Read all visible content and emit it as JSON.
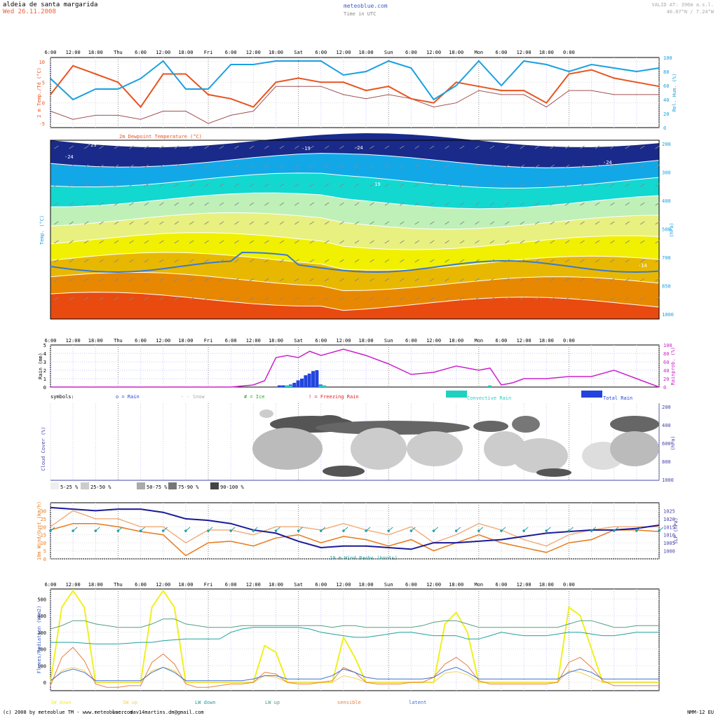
{
  "header": {
    "location": "aldeia de santa margarida",
    "date": "Wed 26.11.2008",
    "brand": "meteoblue.com",
    "time_note": "Time in UTC",
    "valid_at": "VALID AT: 396m a.s.l.",
    "coords": "40.07°N / 7.24°W"
  },
  "footer": {
    "copyright": "(c) 2008 by meteoblue TM - www.meteoblue.com",
    "user": "user: dav14martins.dm@gmail.com",
    "model": "NMM-12 EU"
  },
  "time_axis": {
    "labels": [
      "6:00",
      "12:00",
      "18:00",
      "Thu",
      "6:00",
      "12:00",
      "18:00",
      "Fri",
      "6:00",
      "12:00",
      "18:00",
      "Sat",
      "6:00",
      "12:00",
      "18:00",
      "Sun",
      "6:00",
      "12:00",
      "18:00",
      "Mon",
      "6:00",
      "12:00",
      "18:00",
      "0:00"
    ],
    "labels_panel3": [
      "6:00",
      "12:00",
      "18:00",
      "Thu",
      "6:00",
      "12:00",
      "18:00",
      "Fri",
      "6:00",
      "12:00",
      "18:00",
      "Sat",
      "6:00",
      "12:00",
      "18:00",
      "Sun",
      "6:00",
      "12:00",
      "18:00",
      "Mon",
      "6:00",
      "12:00",
      "18:00",
      "0:00"
    ]
  },
  "colors": {
    "temperature": "#e8531f",
    "humidity": "#1aa0e0",
    "dewpoint": "#a05050",
    "rain": "#2244dd",
    "conv_rain": "#20d0c0",
    "rain_prob": "#cc22cc",
    "pressure": "#1a1a9a",
    "wind": "#e87a1a",
    "gust": "#f0b080",
    "sw_down": "#f0f020",
    "lw_down": "#20a0a0"
  },
  "chart_data": [
    {
      "type": "line",
      "title": "2m Dewpoint Temperature (°C)",
      "ylabel": "2 m Temp./Td (°C)",
      "y2label": "Rel. Hum. (%)",
      "ylim": [
        -6,
        11
      ],
      "y2lim": [
        0,
        100
      ],
      "yticks": [
        10,
        5,
        0,
        -5
      ],
      "y2ticks": [
        100,
        80,
        60,
        40,
        20,
        0
      ],
      "x_hours": [
        0,
        6,
        12,
        18,
        24,
        30,
        36,
        42,
        48,
        54,
        60,
        66,
        72,
        78,
        84,
        90,
        96,
        102,
        108,
        114,
        120,
        126,
        132,
        138,
        144,
        150,
        156,
        162
      ],
      "series": [
        {
          "name": "2m Temperature",
          "values": [
            2,
            9,
            7,
            5,
            -1,
            7,
            7,
            2,
            1,
            -1,
            5,
            6,
            5,
            5,
            3,
            4,
            1,
            0,
            5,
            4,
            3,
            3,
            0,
            7,
            8,
            6,
            5,
            4
          ]
        },
        {
          "name": "Rel. Hum.",
          "values": [
            70,
            40,
            55,
            55,
            70,
            95,
            55,
            55,
            90,
            90,
            95,
            95,
            95,
            75,
            80,
            95,
            85,
            40,
            60,
            95,
            60,
            95,
            90,
            80,
            90,
            85,
            80,
            85
          ]
        },
        {
          "name": "2m Dewpoint",
          "values": [
            -2,
            -4,
            -3,
            -3,
            -4,
            -2,
            -2,
            -5,
            -3,
            -2,
            4,
            4,
            4,
            2,
            1,
            2,
            1,
            -1,
            0,
            3,
            2,
            2,
            -1,
            3,
            3,
            2,
            2,
            2
          ]
        }
      ]
    },
    {
      "type": "heatmap",
      "ylabel": "Temp. (°C)",
      "y2label": "(hPa)",
      "isotherm_labels": [
        "-29",
        "-24",
        "-19",
        "-24",
        "-19",
        "-24",
        "-14"
      ],
      "y2ticks": [
        "200",
        "300",
        "400",
        "500",
        "700",
        "850",
        "1000"
      ]
    },
    {
      "type": "bar",
      "ylabel": "Rain (mm)",
      "y2label": "Rainprob. (%)",
      "ylim": [
        0,
        5
      ],
      "yticks": [
        5,
        4,
        3,
        2,
        1,
        0
      ],
      "y2ticks": [
        100,
        80,
        60,
        40,
        20,
        0
      ],
      "series": [
        {
          "name": "Total Rain",
          "x_hours": [
            61,
            62,
            63,
            64,
            65,
            66,
            67,
            68,
            69,
            70,
            71,
            72
          ],
          "values": [
            0.2,
            0.2,
            0.2,
            0.3,
            0.5,
            0.8,
            1.0,
            1.4,
            1.6,
            1.9,
            2.0,
            0.3
          ]
        },
        {
          "name": "Convective Rain",
          "x_hours": [
            63,
            64,
            72,
            73,
            117
          ],
          "values": [
            0.2,
            0.2,
            0.2,
            0.2,
            0.2
          ]
        },
        {
          "name": "Rainprob.",
          "x_hours": [
            0,
            24,
            48,
            54,
            57,
            60,
            63,
            66,
            69,
            72,
            78,
            84,
            90,
            96,
            102,
            108,
            114,
            117,
            120,
            123,
            126,
            132,
            138,
            144,
            150,
            156,
            162
          ],
          "values": [
            0,
            0,
            0,
            5,
            15,
            70,
            75,
            70,
            85,
            75,
            90,
            75,
            55,
            30,
            35,
            50,
            40,
            45,
            5,
            10,
            20,
            20,
            25,
            25,
            40,
            20,
            0
          ]
        }
      ],
      "symbols_legend": {
        "label": "symbols:",
        "items": [
          "o = Rain",
          "- - Snow",
          "# = Ice",
          "! = Freezing Rain"
        ],
        "conv_label": "Convective Rain",
        "total_label": "Total Rain"
      }
    },
    {
      "type": "heatmap",
      "ylabel": "Cloud Cover (%)",
      "y2label": "(hPa)",
      "y2ticks": [
        "200",
        "400",
        "600",
        "800",
        "1000"
      ],
      "legend": [
        "5-25 %",
        "25-50 %",
        "50-75 %",
        "75-90 %",
        "90-100 %"
      ]
    },
    {
      "type": "line",
      "ylabel": "10m Wind/Gust (km/h)",
      "y2label": "SLP (hPa)",
      "ylim": [
        0,
        35
      ],
      "yticks": [
        30,
        25,
        20,
        15,
        10,
        5,
        0
      ],
      "y2lim": [
        995,
        1030
      ],
      "y2ticks": [
        1025,
        1020,
        1015,
        1010,
        1005,
        1000
      ],
      "note": "10 m Wind Barbs (knots)",
      "x_hours": [
        0,
        6,
        12,
        18,
        24,
        30,
        36,
        42,
        48,
        54,
        60,
        66,
        72,
        78,
        84,
        90,
        96,
        102,
        108,
        114,
        120,
        126,
        132,
        138,
        144,
        150,
        156,
        162
      ],
      "series": [
        {
          "name": "Wind",
          "values": [
            18,
            22,
            22,
            20,
            17,
            15,
            2,
            10,
            11,
            8,
            13,
            15,
            10,
            14,
            12,
            8,
            12,
            5,
            10,
            15,
            10,
            7,
            4,
            10,
            12,
            18,
            18,
            17
          ]
        },
        {
          "name": "Gust",
          "values": [
            20,
            30,
            25,
            25,
            20,
            20,
            10,
            18,
            18,
            15,
            20,
            20,
            18,
            22,
            18,
            15,
            20,
            10,
            15,
            22,
            18,
            12,
            8,
            15,
            18,
            20,
            20,
            20
          ]
        },
        {
          "name": "SLP",
          "values": [
            1027,
            1026,
            1025,
            1026,
            1026,
            1024,
            1020,
            1019,
            1017,
            1013,
            1011,
            1006,
            1002,
            1003,
            1003,
            1002,
            1001,
            1005,
            1005,
            1006,
            1007,
            1009,
            1011,
            1012,
            1013,
            1013,
            1014,
            1016
          ]
        }
      ]
    },
    {
      "type": "line",
      "ylabel": "Fluxes/Radiation (W/m2)",
      "ylim": [
        -50,
        560
      ],
      "yticks": [
        500,
        400,
        300,
        200,
        100,
        0
      ],
      "x_hours": [
        0,
        3,
        6,
        9,
        12,
        15,
        18,
        21,
        24,
        27,
        30,
        33,
        36,
        39,
        42,
        45,
        48,
        51,
        54,
        57,
        60,
        63,
        66,
        69,
        72,
        75,
        78,
        81,
        84,
        87,
        90,
        93,
        96,
        99,
        102,
        105,
        108,
        111,
        114,
        117,
        120,
        123,
        126,
        129,
        132,
        135,
        138,
        141,
        144,
        147,
        150,
        153,
        156,
        159,
        162
      ],
      "series": [
        {
          "name": "SW down",
          "values": [
            0,
            450,
            550,
            450,
            0,
            0,
            0,
            0,
            0,
            450,
            550,
            450,
            0,
            0,
            0,
            0,
            0,
            0,
            0,
            220,
            180,
            0,
            0,
            0,
            0,
            0,
            270,
            150,
            0,
            0,
            0,
            0,
            0,
            0,
            0,
            350,
            420,
            300,
            0,
            0,
            0,
            0,
            0,
            0,
            0,
            0,
            450,
            400,
            200,
            0,
            0,
            0,
            0,
            0,
            0
          ]
        },
        {
          "name": "SW up",
          "values": [
            0,
            70,
            90,
            70,
            0,
            0,
            0,
            0,
            0,
            70,
            90,
            70,
            0,
            0,
            0,
            0,
            0,
            0,
            0,
            40,
            30,
            0,
            0,
            0,
            0,
            0,
            40,
            25,
            0,
            0,
            0,
            0,
            0,
            0,
            0,
            55,
            65,
            45,
            0,
            0,
            0,
            0,
            0,
            0,
            0,
            0,
            70,
            60,
            30,
            0,
            0,
            0,
            0,
            0,
            0
          ]
        },
        {
          "name": "LW down",
          "values": [
            240,
            240,
            240,
            235,
            230,
            230,
            230,
            235,
            240,
            240,
            250,
            255,
            260,
            260,
            260,
            260,
            300,
            320,
            330,
            330,
            330,
            330,
            330,
            320,
            300,
            290,
            280,
            270,
            270,
            280,
            290,
            300,
            300,
            290,
            280,
            280,
            280,
            260,
            260,
            280,
            300,
            290,
            280,
            280,
            280,
            290,
            300,
            300,
            290,
            280,
            280,
            290,
            300,
            300,
            300
          ]
        },
        {
          "name": "LW up",
          "values": [
            320,
            340,
            370,
            370,
            350,
            340,
            330,
            330,
            330,
            350,
            380,
            380,
            350,
            340,
            330,
            330,
            330,
            340,
            340,
            340,
            340,
            340,
            340,
            340,
            340,
            330,
            340,
            340,
            330,
            330,
            330,
            330,
            330,
            340,
            360,
            370,
            370,
            350,
            330,
            330,
            330,
            330,
            330,
            330,
            330,
            330,
            350,
            370,
            370,
            350,
            330,
            330,
            340,
            340,
            340
          ]
        },
        {
          "name": "sensible",
          "values": [
            -20,
            150,
            210,
            130,
            -10,
            -30,
            -30,
            -20,
            -20,
            120,
            170,
            110,
            -10,
            -30,
            -30,
            -20,
            -10,
            -10,
            0,
            60,
            50,
            0,
            -10,
            -10,
            0,
            10,
            90,
            60,
            0,
            -10,
            -10,
            -10,
            0,
            0,
            30,
            110,
            150,
            100,
            10,
            -10,
            -10,
            -10,
            -10,
            -10,
            -10,
            0,
            120,
            150,
            90,
            10,
            -20,
            -20,
            -20,
            -20,
            -20
          ]
        },
        {
          "name": "latent",
          "values": [
            10,
            60,
            80,
            60,
            10,
            10,
            10,
            10,
            10,
            60,
            90,
            60,
            10,
            10,
            10,
            10,
            10,
            10,
            20,
            40,
            40,
            20,
            20,
            20,
            20,
            40,
            80,
            60,
            30,
            20,
            20,
            20,
            20,
            20,
            30,
            70,
            90,
            60,
            20,
            20,
            20,
            20,
            20,
            20,
            20,
            20,
            60,
            80,
            60,
            20,
            20,
            20,
            20,
            20,
            20
          ]
        }
      ],
      "legend": [
        "SW down",
        "SW up",
        "LW down",
        "LW up",
        "sensible",
        "latent"
      ]
    }
  ]
}
